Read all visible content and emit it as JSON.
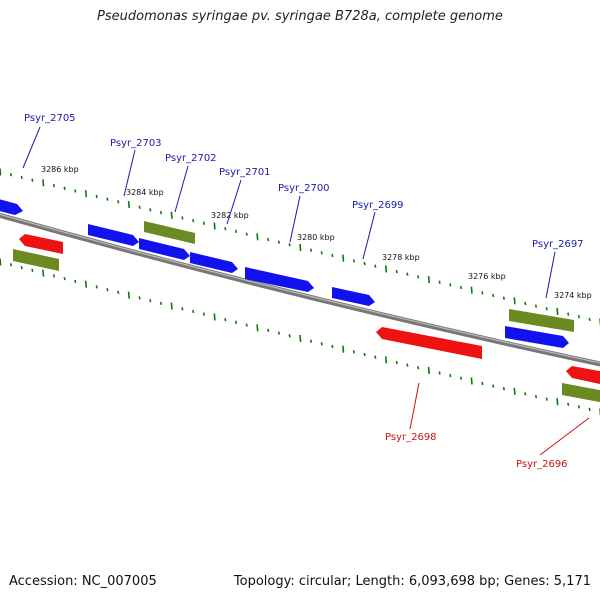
{
  "title": "Pseudomonas syringae pv. syringae B728a, complete genome",
  "footer": {
    "accession": "Accession: NC_007005",
    "summary": "Topology: circular; Length: 6,093,698 bp; Genes: 5,171"
  },
  "colors": {
    "forward_gene": "#1010ee",
    "reverse_gene": "#ee1010",
    "rna_gene": "#6b8a22",
    "label_forward": "#1a1aaa",
    "label_reverse": "#cc1111",
    "backbone": "#777777",
    "tick": "#117711"
  },
  "scale_ticks": [
    "3286 kbp",
    "3284 kbp",
    "3282 kbp",
    "3280 kbp",
    "3278 kbp",
    "3276 kbp",
    "3274 kbp"
  ],
  "gene_labels": [
    {
      "name": "Psyr_2705",
      "strand": "forward"
    },
    {
      "name": "Psyr_2703",
      "strand": "forward"
    },
    {
      "name": "Psyr_2702",
      "strand": "forward"
    },
    {
      "name": "Psyr_2701",
      "strand": "forward"
    },
    {
      "name": "Psyr_2700",
      "strand": "forward"
    },
    {
      "name": "Psyr_2699",
      "strand": "forward"
    },
    {
      "name": "Psyr_2697",
      "strand": "forward"
    },
    {
      "name": "Psyr_2698",
      "strand": "reverse"
    },
    {
      "name": "Psyr_2696",
      "strand": "reverse"
    }
  ]
}
